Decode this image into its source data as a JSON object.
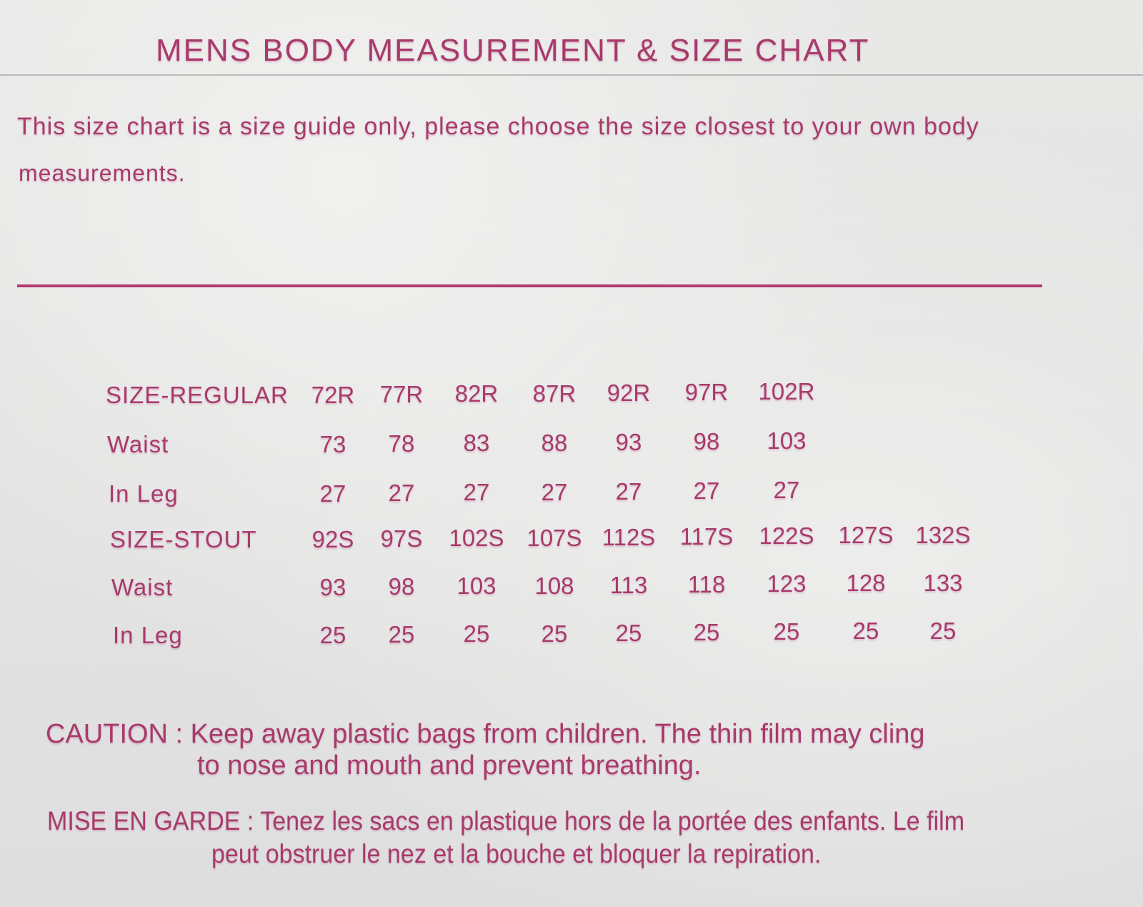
{
  "title": "MENS BODY MEASUREMENT & SIZE CHART",
  "intro": {
    "line1": "This size chart is a size guide only, please choose the size closest to your own body",
    "line2": "measurements."
  },
  "table": {
    "rows": [
      {
        "label": "SIZE-REGULAR",
        "values": [
          "72R",
          "77R",
          "82R",
          "87R",
          "92R",
          "97R",
          "102R"
        ]
      },
      {
        "label": "Waist",
        "values": [
          "73",
          "78",
          "83",
          "88",
          "93",
          "98",
          "103"
        ]
      },
      {
        "label": "In Leg",
        "values": [
          "27",
          "27",
          "27",
          "27",
          "27",
          "27",
          "27"
        ]
      },
      {
        "label": "SIZE-STOUT",
        "values": [
          "92S",
          "97S",
          "102S",
          "107S",
          "112S",
          "117S",
          "122S",
          "127S",
          "132S"
        ]
      },
      {
        "label": "Waist",
        "values": [
          "93",
          "98",
          "103",
          "108",
          "113",
          "118",
          "123",
          "128",
          "133"
        ]
      },
      {
        "label": "In Leg",
        "values": [
          "25",
          "25",
          "25",
          "25",
          "25",
          "25",
          "25",
          "25",
          "25"
        ]
      }
    ]
  },
  "caution": {
    "line1": "CAUTION : Keep away plastic bags from children. The thin film may cling",
    "line2": "to nose and mouth and prevent breathing."
  },
  "mise_en_garde": {
    "line1": "MISE EN GARDE : Tenez les sacs en plastique hors de la portée des enfants. Le film",
    "line2": "peut obstruer le nez et la bouche et bloquer la repiration."
  },
  "colors": {
    "ink": "#a83a6c",
    "background": "#e4e4e3"
  }
}
